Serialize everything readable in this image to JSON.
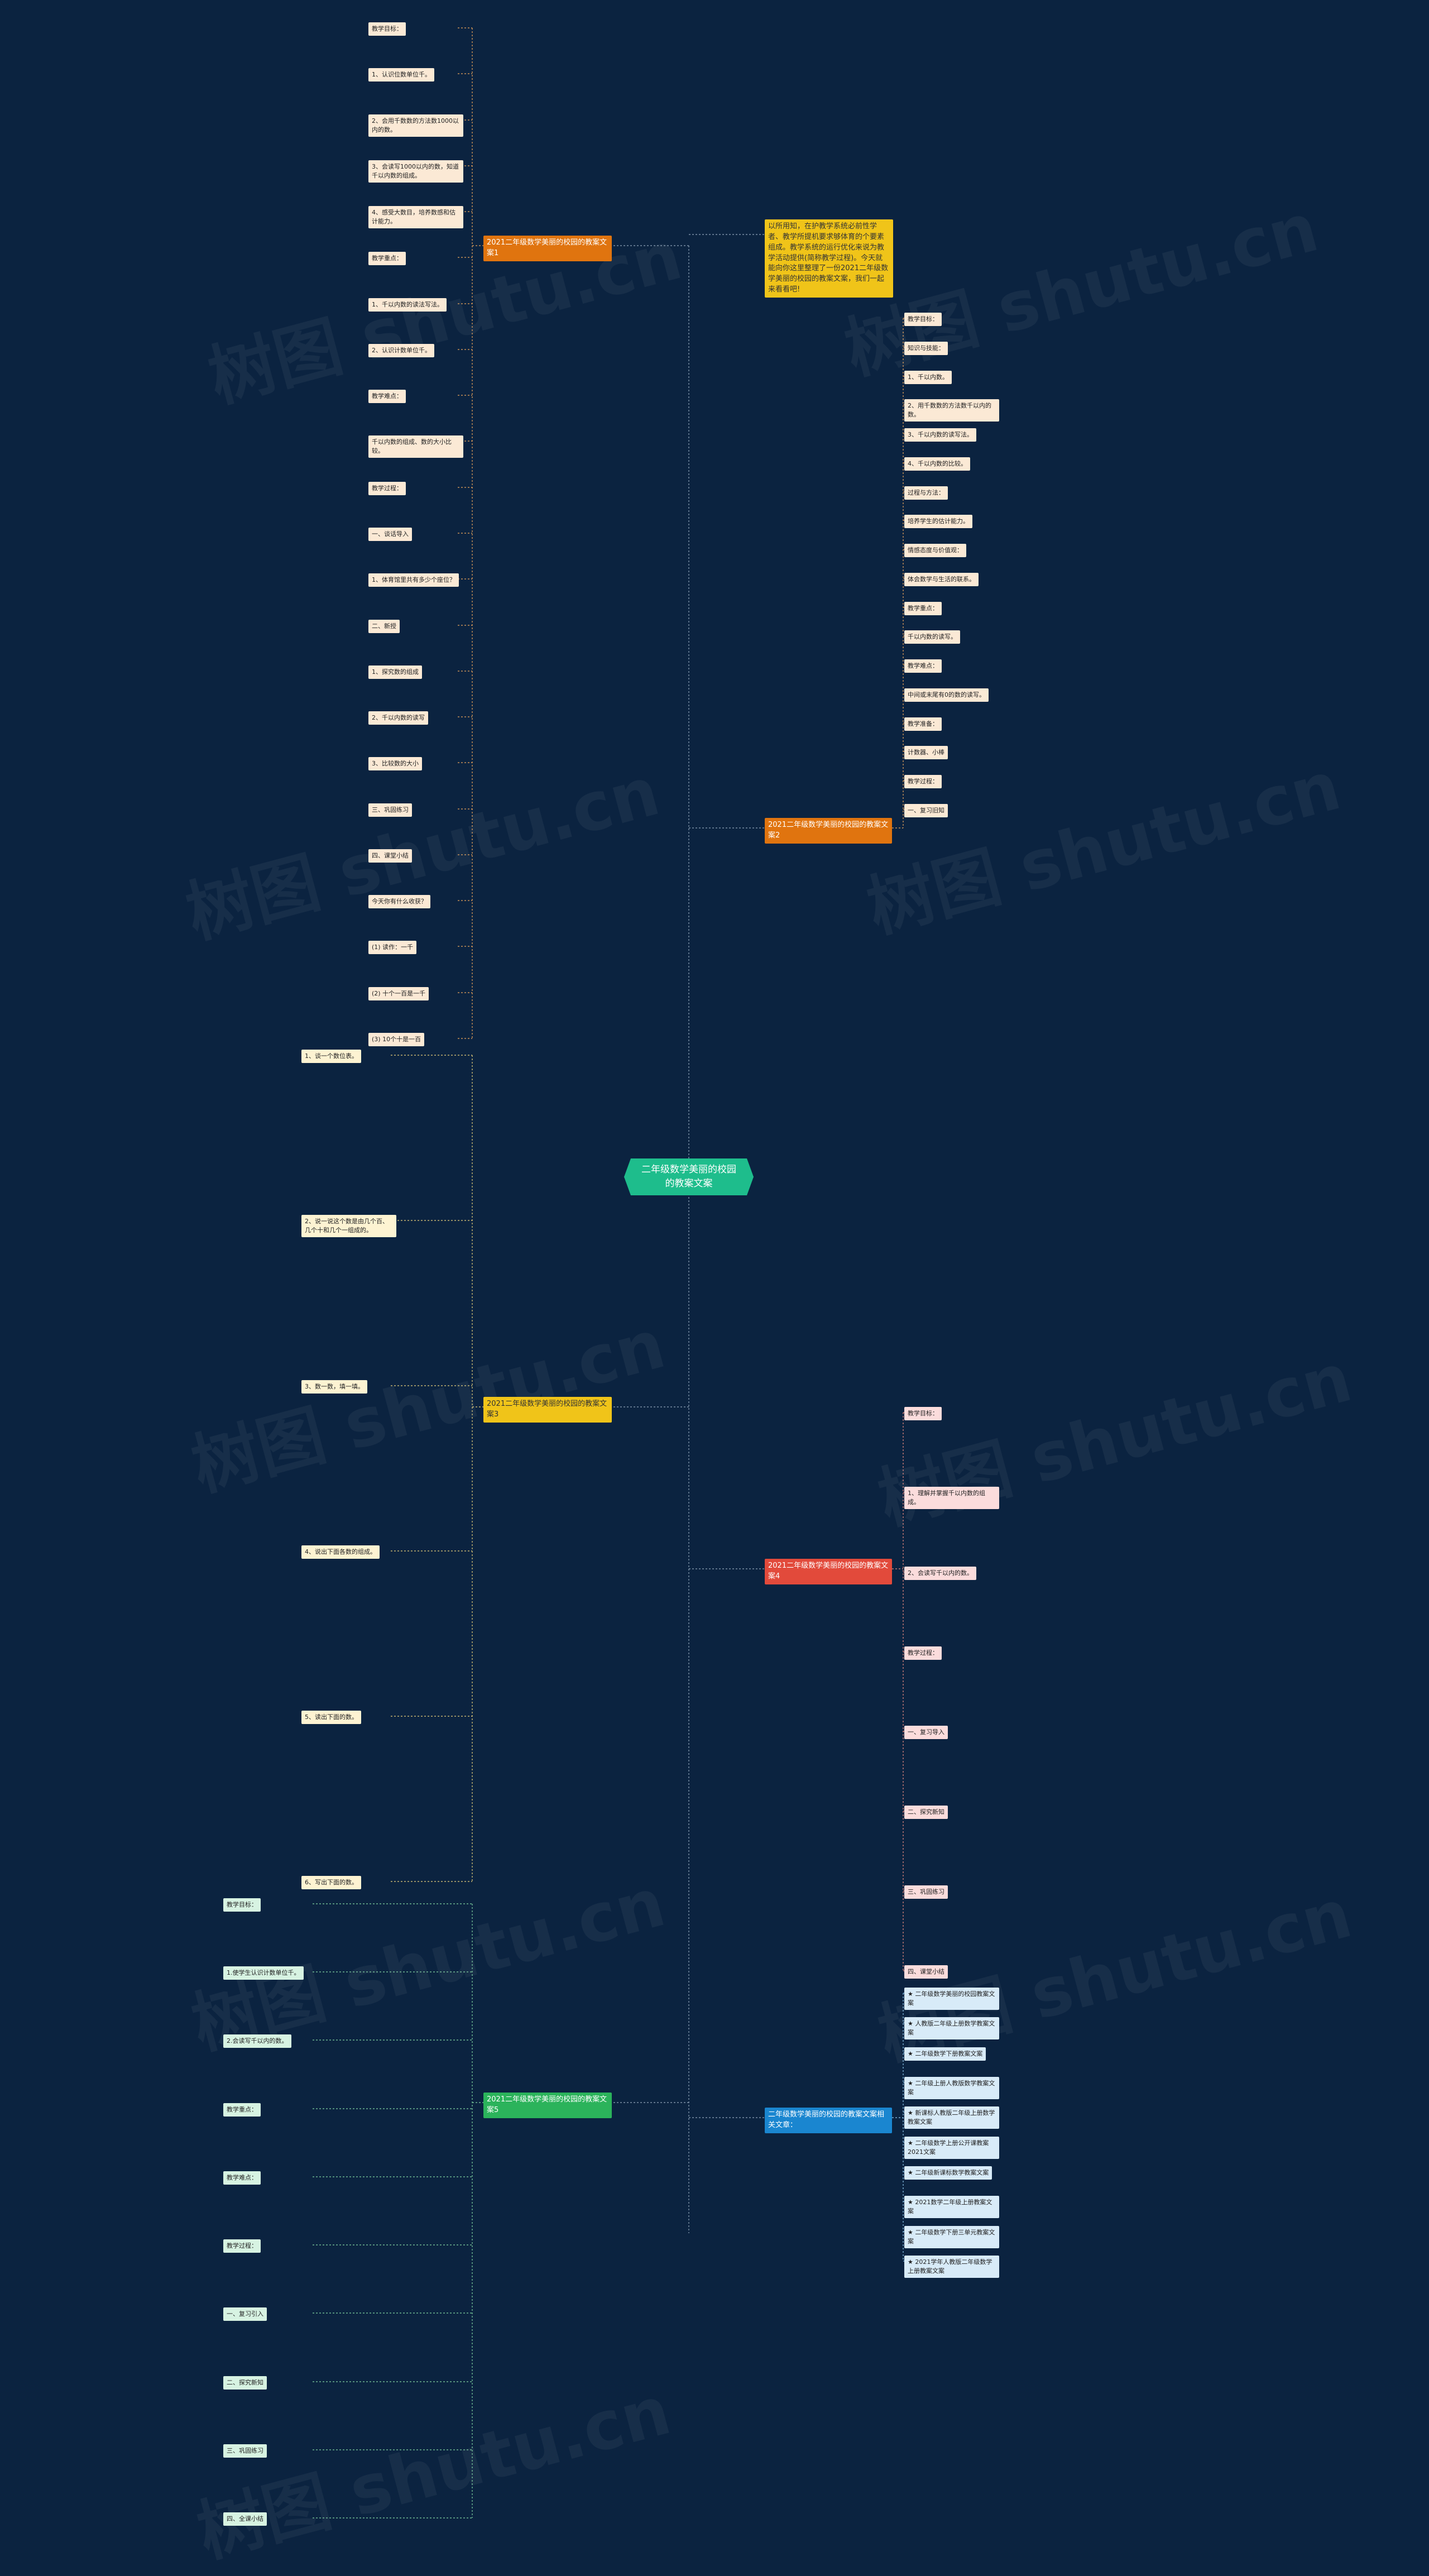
{
  "title": "二年级数学美丽的校园的教案文案",
  "intro": "以所用知，在护教学系统必前性学者、教学所提机要求够体育的个要素组成。教学系统的运行优化来说为教学活动提供(简称教学过程)。今天就能向你这里整理了一份2021二年级数学美丽的校园的教案文案，我们一起来看看吧!",
  "branches": [
    {
      "label": "2021二年级数学美丽的校园的教案文案1",
      "items": [
        "教学目标：",
        "1、认识位数单位千。",
        "2、会用千数数的方法数1000以内的数。",
        "3、会读写1000以内的数，知道千以内数的组成。",
        "4、感受大数目，培养数感和估计能力。",
        "教学重点：",
        "1、千以内数的读法写法。",
        "2、认识计数单位千。",
        "教学难点：",
        "千以内数的组成、数的大小比较。",
        "教学过程：",
        "一、谈话导入",
        "1、体育馆里共有多少个座位？",
        "二、新授",
        "1、探究数的组成",
        "2、千以内数的读写",
        "3、比较数的大小",
        "三、巩固练习",
        "四、课堂小结",
        "今天你有什么收获？",
        "(1) 读作：一千",
        "(2) 十个一百是一千",
        "(3) 10个十是一百"
      ]
    },
    {
      "label": "2021二年级数学美丽的校园的教案文案2",
      "items": [
        "教学目标：",
        "知识与技能：",
        "1、千以内数。",
        "2、用千数数的方法数千以内的数。",
        "3、千以内数的读写法。",
        "4、千以内数的比较。",
        "过程与方法：",
        "培养学生的估计能力。",
        "情感态度与价值观：",
        "体会数学与生活的联系。",
        "教学重点：",
        "千以内数的读写。",
        "教学难点：",
        "中间或末尾有0的数的读写。",
        "教学准备：",
        "计数器、小棒",
        "教学过程：",
        "一、复习旧知"
      ]
    },
    {
      "label": "2021二年级数学美丽的校园的教案文案3",
      "items": [
        "1、谈一个数位表。",
        "2、说一说这个数是由几个百、几个十和几个一组成的。",
        "3、数一数，填一填。",
        "4、说出下面各数的组成。",
        "5、读出下面的数。",
        "6、写出下面的数。"
      ]
    },
    {
      "label": "2021二年级数学美丽的校园的教案文案4",
      "items": [
        "教学目标：",
        "1、理解并掌握千以内数的组成。",
        "2、会读写千以内的数。",
        "教学过程：",
        "一、复习导入",
        "二、探究新知",
        "三、巩固练习",
        "四、课堂小结"
      ]
    },
    {
      "label": "2021二年级数学美丽的校园的教案文案5",
      "items": [
        "教学目标：",
        "1.使学生认识计数单位千。",
        "2.会读写千以内的数。",
        "教学重点：",
        "教学难点：",
        "教学过程：",
        "一、复习引入",
        "二、探究新知",
        "三、巩固练习",
        "四、全课小结"
      ]
    },
    {
      "label": "二年级数学美丽的校园的教案文案相关文章：",
      "items": [
        "★ 二年级数学美丽的校园教案文案",
        "★ 人教版二年级上册数学教案文案",
        "★ 二年级数学下册教案文案",
        "★ 二年级上册人教版数学教案文案",
        "★ 新课标人教版二年级上册数学教案文案",
        "★ 二年级数学上册公开课教案2021文案",
        "★ 二年级新课标数学教案文案",
        "★ 2021数学二年级上册教案文案",
        "★ 二年级数学下册三单元教案文案",
        "★ 2021学年人教版二年级数学上册教案文案"
      ]
    }
  ]
}
